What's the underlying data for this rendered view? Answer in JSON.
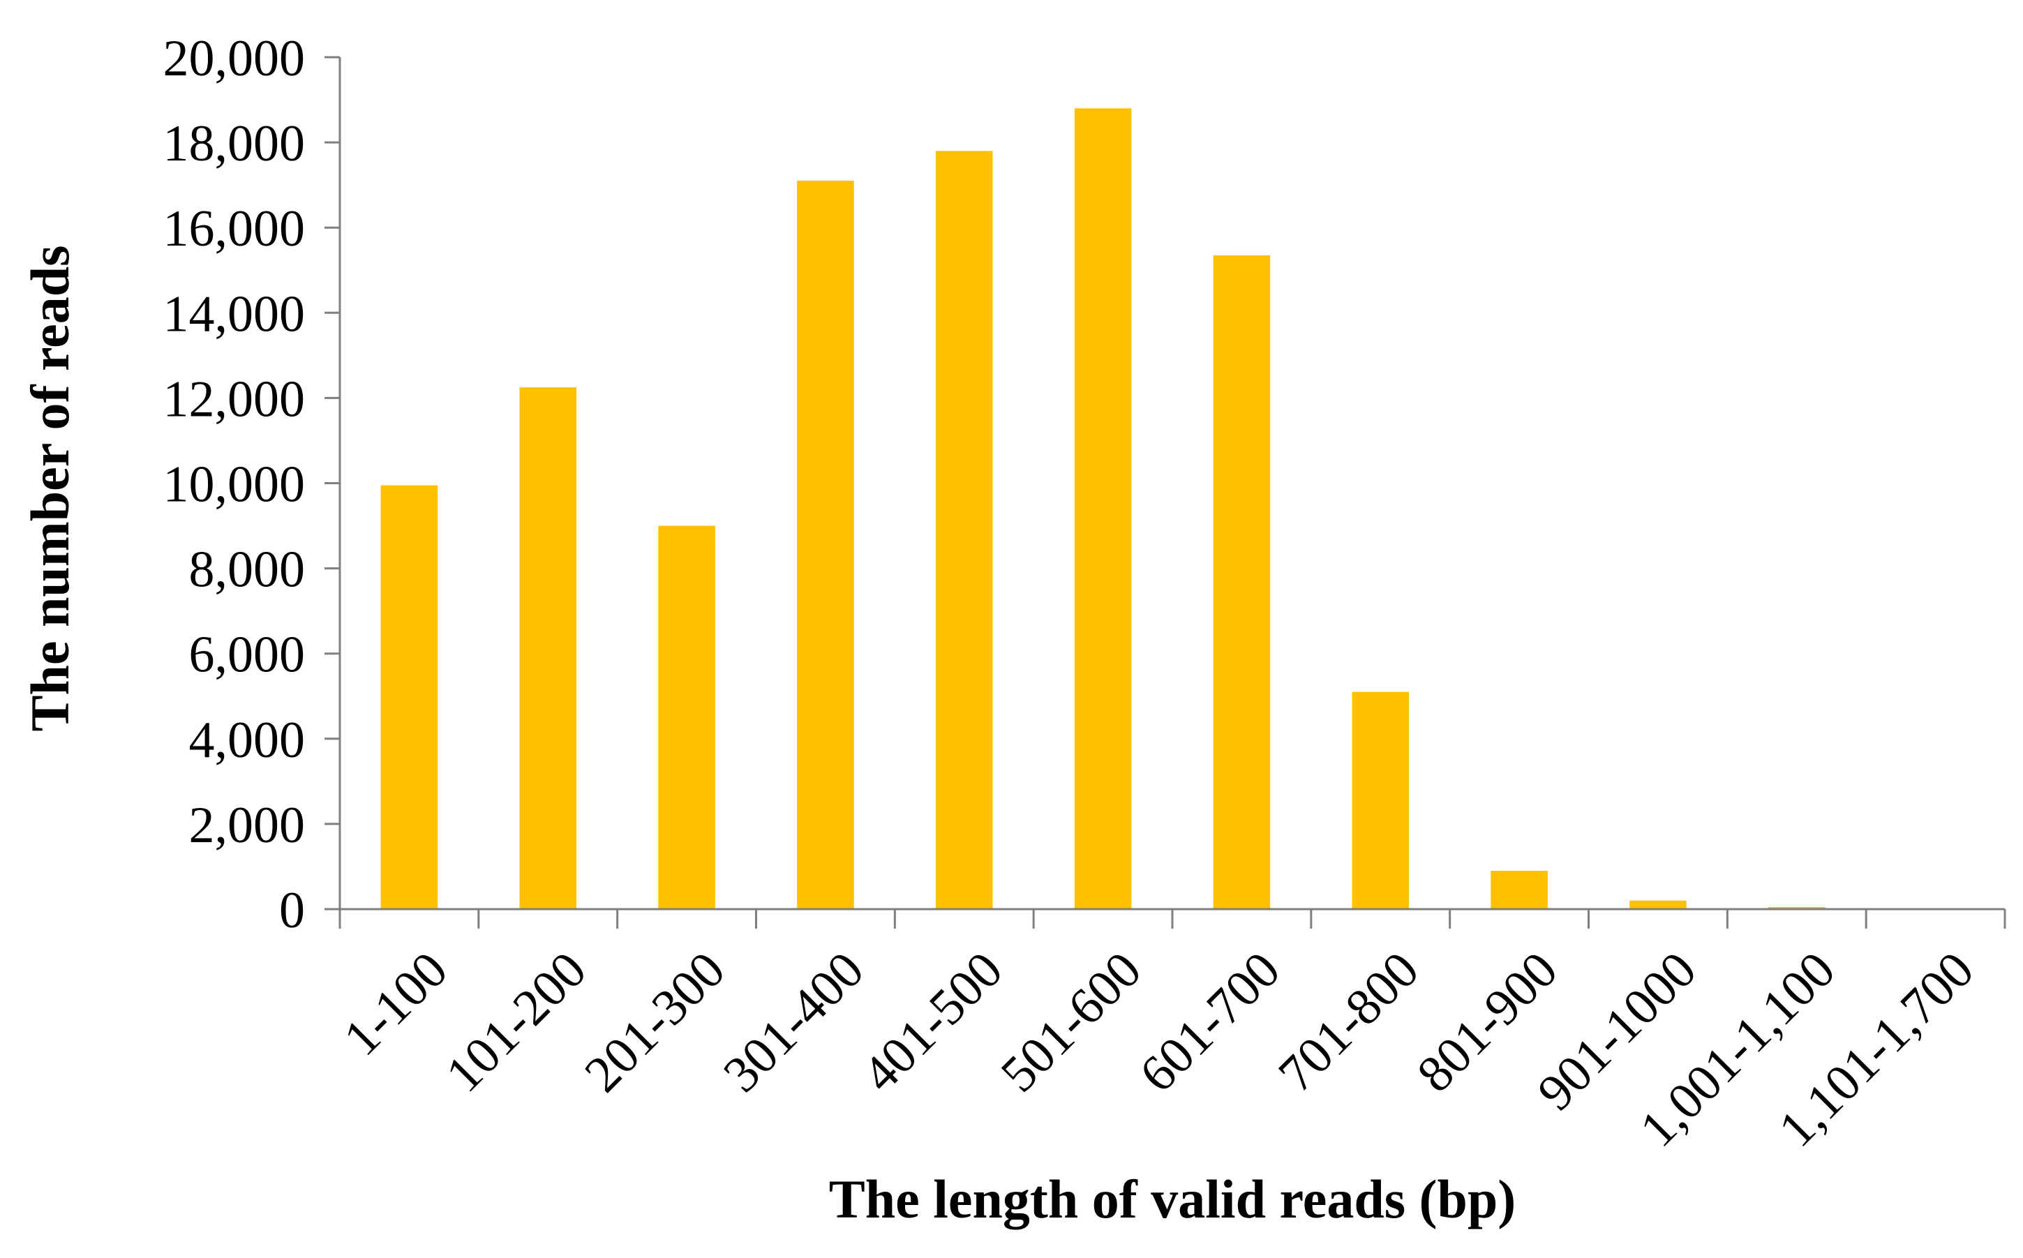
{
  "chart_data": {
    "type": "bar",
    "title": "",
    "xlabel": "The length of valid reads (bp)",
    "ylabel": "The number of reads",
    "categories": [
      "1-100",
      "101-200",
      "201-300",
      "301-400",
      "401-500",
      "501-600",
      "601-700",
      "701-800",
      "801-900",
      "901-1000",
      "1,001-1,100",
      "1,101-1,700"
    ],
    "values": [
      9950,
      12250,
      9000,
      17100,
      17800,
      18800,
      15350,
      5100,
      900,
      200,
      50,
      0
    ],
    "ylim": [
      0,
      20000
    ],
    "yticks": [
      0,
      2000,
      4000,
      6000,
      8000,
      10000,
      12000,
      14000,
      16000,
      18000,
      20000
    ],
    "ytick_labels": [
      "0",
      "2,000",
      "4,000",
      "6,000",
      "8,000",
      "10,000",
      "12,000",
      "14,000",
      "16,000",
      "18,000",
      "20,000"
    ],
    "grid": false,
    "legend": "none",
    "bar_color": "#FFC000",
    "axis_color": "#7F7F7F"
  }
}
